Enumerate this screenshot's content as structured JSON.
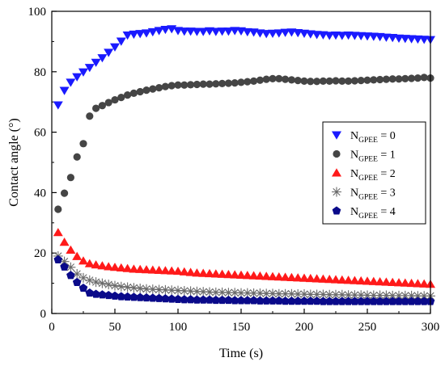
{
  "chart_data": {
    "type": "scatter",
    "xlabel": "Time (s)",
    "ylabel": "Contact angle (°)",
    "xlim": [
      0,
      300
    ],
    "ylim": [
      0,
      100
    ],
    "xticks": [
      0,
      50,
      100,
      150,
      200,
      250,
      300
    ],
    "yticks": [
      0,
      20,
      40,
      60,
      80,
      100
    ],
    "grid": false,
    "legend_position": "right",
    "x": [
      5,
      10,
      15,
      20,
      25,
      30,
      35,
      40,
      45,
      50,
      55,
      60,
      65,
      70,
      75,
      80,
      85,
      90,
      95,
      100,
      105,
      110,
      115,
      120,
      125,
      130,
      135,
      140,
      145,
      150,
      155,
      160,
      165,
      170,
      175,
      180,
      185,
      190,
      195,
      200,
      205,
      210,
      215,
      220,
      225,
      230,
      235,
      240,
      245,
      250,
      255,
      260,
      265,
      270,
      275,
      280,
      285,
      290,
      295,
      300
    ],
    "series": [
      {
        "name_main": "N",
        "name_sub": "GPEE",
        "name_rest": " = 0",
        "marker": "triangle-down",
        "color": "#1a1aff",
        "values": [
          69,
          73.8,
          76.5,
          78.3,
          79.9,
          81.4,
          83.1,
          84.6,
          86.4,
          88.2,
          90.1,
          92.1,
          92.4,
          92.6,
          92.8,
          93.2,
          93.6,
          94,
          94.2,
          93.6,
          93.4,
          93.4,
          93.3,
          93.3,
          93.5,
          93.3,
          93.4,
          93.4,
          93.6,
          93.5,
          93.2,
          93.1,
          92.8,
          92.6,
          92.7,
          92.8,
          93,
          93.1,
          92.9,
          92.7,
          92.5,
          92.3,
          92.2,
          92,
          92.1,
          92,
          92.1,
          92,
          91.9,
          91.8,
          91.7,
          91.6,
          91.4,
          91.3,
          91.1,
          91,
          90.9,
          90.8,
          90.7,
          90.6
        ]
      },
      {
        "name_main": "N",
        "name_sub": "GPEE",
        "name_rest": " = 1",
        "marker": "circle",
        "color": "#454545",
        "values": [
          34.5,
          39.8,
          45,
          51.8,
          56.2,
          65.3,
          67.9,
          68.8,
          69.8,
          70.7,
          71.5,
          72.3,
          72.9,
          73.4,
          73.9,
          74.3,
          74.7,
          75.1,
          75.4,
          75.6,
          75.6,
          75.7,
          75.8,
          75.9,
          75.9,
          76,
          76.1,
          76.2,
          76.3,
          76.5,
          76.7,
          76.9,
          77.2,
          77.5,
          77.7,
          77.7,
          77.5,
          77.3,
          77.1,
          76.9,
          76.8,
          76.8,
          76.9,
          76.9,
          77,
          76.9,
          76.9,
          77,
          77.1,
          77.2,
          77.3,
          77.4,
          77.5,
          77.6,
          77.6,
          77.7,
          77.8,
          77.9,
          78.1,
          77.9
        ]
      },
      {
        "name_main": "N",
        "name_sub": "GPEE",
        "name_rest": " = 2",
        "marker": "triangle-up",
        "color": "#ff1a1a",
        "values": [
          26.8,
          23.6,
          21,
          18.9,
          17.4,
          16.5,
          16.1,
          15.8,
          15.5,
          15.3,
          15.1,
          14.9,
          14.7,
          14.6,
          14.5,
          14.4,
          14.3,
          14.2,
          14.1,
          14,
          13.8,
          13.6,
          13.4,
          13.3,
          13.2,
          13.1,
          13,
          12.9,
          12.8,
          12.7,
          12.6,
          12.5,
          12.4,
          12.3,
          12.2,
          12.1,
          12,
          11.9,
          11.8,
          11.7,
          11.6,
          11.5,
          11.4,
          11.3,
          11.2,
          11.1,
          11,
          10.9,
          10.8,
          10.7,
          10.6,
          10.5,
          10.4,
          10.3,
          10.2,
          10.1,
          10,
          9.9,
          9.8,
          9.7
        ]
      },
      {
        "name_main": "N",
        "name_sub": "GPEE",
        "name_rest": " = 3",
        "marker": "asterisk",
        "color": "#6a6a6a",
        "values": [
          19,
          17.2,
          15.3,
          13.1,
          11.8,
          11,
          10.4,
          10,
          9.6,
          9.2,
          8.9,
          8.7,
          8.5,
          8.3,
          8.1,
          8,
          7.9,
          7.8,
          7.7,
          7.6,
          7.5,
          7.4,
          7.3,
          7.2,
          7.1,
          7,
          7,
          6.9,
          6.9,
          6.8,
          6.8,
          6.7,
          6.7,
          6.6,
          6.6,
          6.5,
          6.5,
          6.5,
          6.4,
          6.4,
          6.3,
          6.3,
          6.3,
          6.2,
          6.2,
          6.2,
          6.1,
          6.1,
          6.1,
          6,
          6,
          6,
          6,
          5.9,
          5.9,
          5.9,
          5.9,
          5.8,
          5.8,
          5.8
        ]
      },
      {
        "name_main": "N",
        "name_sub": "GPEE",
        "name_rest": " = 4",
        "marker": "pentagon",
        "color": "#0a0a8a",
        "values": [
          17.8,
          15.4,
          12.6,
          10.3,
          8.4,
          6.8,
          6.4,
          6.2,
          6,
          5.8,
          5.6,
          5.5,
          5.4,
          5.3,
          5.2,
          5.1,
          5,
          4.9,
          4.8,
          4.7,
          4.6,
          4.6,
          4.5,
          4.5,
          4.5,
          4.4,
          4.4,
          4.4,
          4.3,
          4.3,
          4.3,
          4.3,
          4.2,
          4.2,
          4.2,
          4.2,
          4.1,
          4.1,
          4.1,
          4.1,
          4.1,
          4.1,
          4,
          4,
          4,
          4,
          4,
          4,
          4,
          4,
          4,
          4,
          4,
          4,
          4,
          4,
          4,
          4,
          4,
          4
        ]
      }
    ]
  }
}
